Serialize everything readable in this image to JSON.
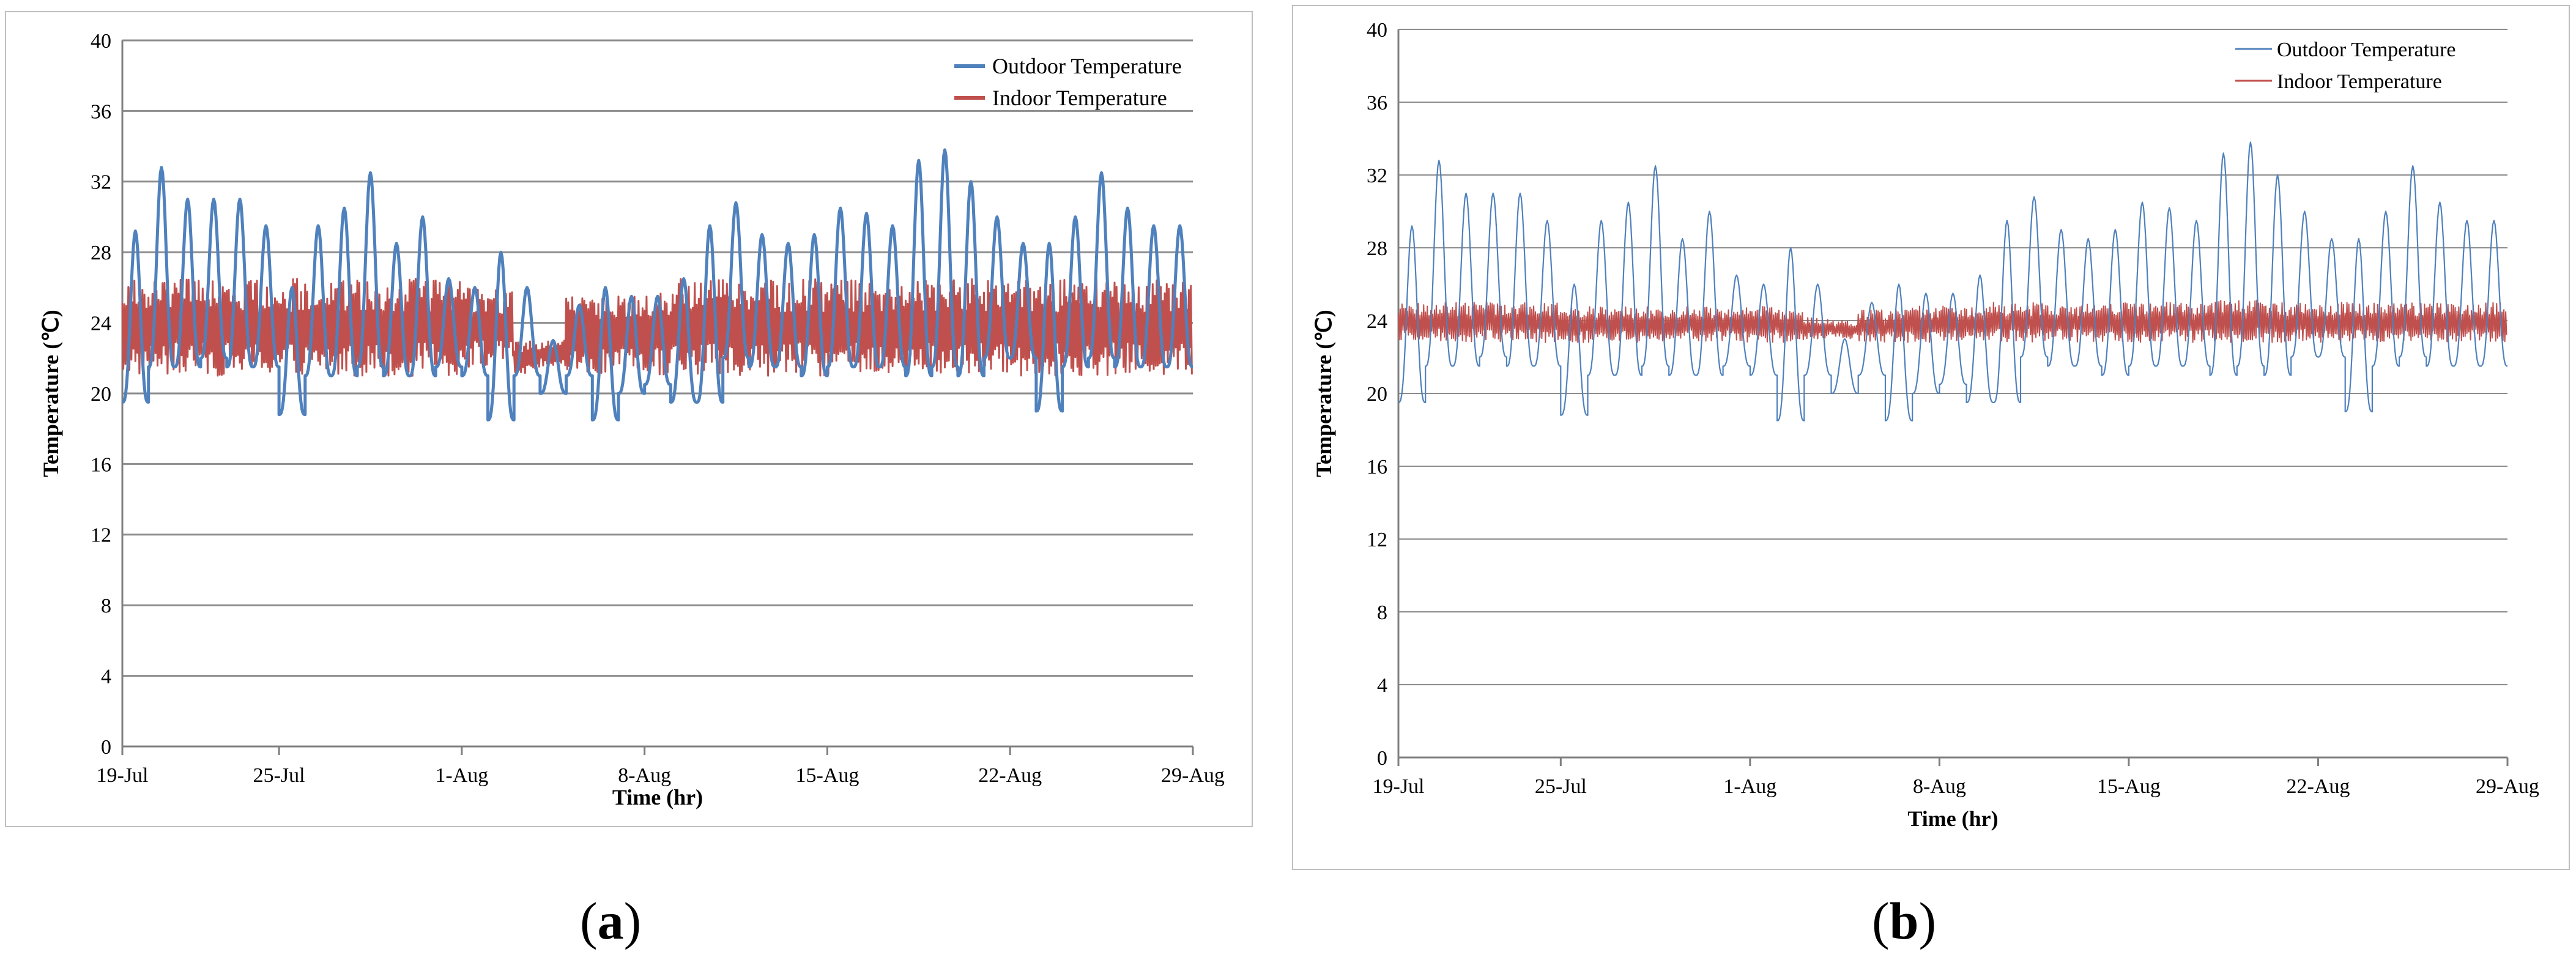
{
  "chart_data": [
    {
      "type": "line",
      "panel_label": "a",
      "xlabel": "Time (hr)",
      "ylabel": "Temperature (℃)",
      "ylim": [
        0,
        40
      ],
      "yticks": [
        "0",
        "4",
        "8",
        "12",
        "16",
        "20",
        "24",
        "28",
        "32",
        "36",
        "40"
      ],
      "xlim_days": [
        0,
        41
      ],
      "xticks": [
        {
          "label": "19-Jul",
          "day": 0
        },
        {
          "label": "25-Jul",
          "day": 6
        },
        {
          "label": "1-Aug",
          "day": 13
        },
        {
          "label": "8-Aug",
          "day": 20
        },
        {
          "label": "15-Aug",
          "day": 27
        },
        {
          "label": "22-Aug",
          "day": 34
        },
        {
          "label": "29-Aug",
          "day": 41
        }
      ],
      "grid": "horizontal",
      "legend_position": "top-right",
      "series": [
        {
          "name": "Outdoor Temperature",
          "color": "#4f81bd",
          "line_width": "thick"
        },
        {
          "name": "Indoor Temperature",
          "color": "#c0504d",
          "line_width": "thick"
        }
      ],
      "outdoor_daily": [
        [
          19.5,
          29.2
        ],
        [
          21.5,
          32.8
        ],
        [
          21.5,
          31.0
        ],
        [
          22.0,
          31.0
        ],
        [
          21.5,
          31.0
        ],
        [
          21.5,
          29.5
        ],
        [
          18.8,
          26.0
        ],
        [
          21.0,
          29.5
        ],
        [
          21.0,
          30.5
        ],
        [
          21.5,
          32.5
        ],
        [
          21.0,
          28.5
        ],
        [
          21.0,
          30.0
        ],
        [
          21.5,
          26.5
        ],
        [
          21.0,
          26.0
        ],
        [
          18.5,
          28.0
        ],
        [
          21.0,
          26.0
        ],
        [
          20.0,
          23.0
        ],
        [
          21.0,
          25.0
        ],
        [
          18.5,
          26.0
        ],
        [
          20.0,
          25.5
        ],
        [
          20.5,
          25.5
        ],
        [
          19.5,
          26.5
        ],
        [
          19.5,
          29.5
        ],
        [
          22.0,
          30.8
        ],
        [
          21.5,
          29.0
        ],
        [
          21.5,
          28.5
        ],
        [
          21.0,
          29.0
        ],
        [
          21.5,
          30.5
        ],
        [
          21.5,
          30.2
        ],
        [
          21.5,
          29.5
        ],
        [
          21.0,
          33.2
        ],
        [
          21.5,
          33.8
        ],
        [
          21.0,
          32.0
        ],
        [
          22.0,
          30.0
        ],
        [
          22.0,
          28.5
        ],
        [
          19.0,
          28.5
        ],
        [
          21.5,
          30.0
        ],
        [
          22.0,
          32.5
        ],
        [
          21.5,
          30.5
        ],
        [
          21.5,
          29.5
        ],
        [
          21.5,
          29.5
        ]
      ],
      "indoor_band": [
        [
          21.0,
          26.5
        ],
        [
          21.0,
          26.5
        ],
        [
          21.0,
          26.5
        ],
        [
          21.0,
          26.5
        ],
        [
          21.0,
          26.5
        ],
        [
          21.0,
          26.5
        ],
        [
          21.0,
          26.5
        ],
        [
          21.0,
          26.5
        ],
        [
          21.0,
          26.5
        ],
        [
          21.0,
          26.5
        ],
        [
          21.0,
          26.5
        ],
        [
          21.0,
          26.5
        ],
        [
          21.0,
          26.5
        ],
        [
          21.5,
          26.0
        ],
        [
          21.5,
          26.0
        ],
        [
          21.0,
          23.0
        ],
        [
          21.5,
          23.0
        ],
        [
          21.0,
          25.5
        ],
        [
          21.0,
          25.5
        ],
        [
          21.0,
          25.5
        ],
        [
          21.0,
          26.0
        ],
        [
          21.0,
          26.5
        ],
        [
          21.0,
          26.5
        ],
        [
          21.0,
          26.5
        ],
        [
          21.0,
          26.5
        ],
        [
          21.0,
          26.5
        ],
        [
          21.0,
          26.5
        ],
        [
          21.0,
          26.5
        ],
        [
          21.0,
          26.5
        ],
        [
          21.0,
          26.5
        ],
        [
          21.0,
          26.5
        ],
        [
          21.0,
          26.5
        ],
        [
          21.0,
          26.5
        ],
        [
          21.0,
          26.5
        ],
        [
          21.0,
          26.5
        ],
        [
          21.0,
          26.5
        ],
        [
          21.0,
          26.5
        ],
        [
          21.0,
          26.5
        ],
        [
          21.0,
          26.5
        ],
        [
          21.0,
          26.5
        ],
        [
          21.0,
          26.5
        ]
      ]
    },
    {
      "type": "line",
      "panel_label": "b",
      "xlabel": "Time (hr)",
      "ylabel": "Temperature (℃)",
      "ylim": [
        0,
        40
      ],
      "yticks": [
        "0",
        "4",
        "8",
        "12",
        "16",
        "20",
        "24",
        "28",
        "32",
        "36",
        "40"
      ],
      "xlim_days": [
        0,
        41
      ],
      "xticks": [
        {
          "label": "19-Jul",
          "day": 0
        },
        {
          "label": "25-Jul",
          "day": 6
        },
        {
          "label": "1-Aug",
          "day": 13
        },
        {
          "label": "8-Aug",
          "day": 20
        },
        {
          "label": "15-Aug",
          "day": 27
        },
        {
          "label": "22-Aug",
          "day": 34
        },
        {
          "label": "29-Aug",
          "day": 41
        }
      ],
      "grid": "horizontal",
      "legend_position": "top-right",
      "series": [
        {
          "name": "Outdoor Temperature",
          "color": "#4f81bd",
          "line_width": "thin"
        },
        {
          "name": "Indoor Temperature",
          "color": "#c0504d",
          "line_width": "thin"
        }
      ],
      "outdoor_daily": [
        [
          19.5,
          29.2
        ],
        [
          21.5,
          32.8
        ],
        [
          21.5,
          31.0
        ],
        [
          22.0,
          31.0
        ],
        [
          21.5,
          31.0
        ],
        [
          21.5,
          29.5
        ],
        [
          18.8,
          26.0
        ],
        [
          21.0,
          29.5
        ],
        [
          21.0,
          30.5
        ],
        [
          21.5,
          32.5
        ],
        [
          21.0,
          28.5
        ],
        [
          21.0,
          30.0
        ],
        [
          21.5,
          26.5
        ],
        [
          21.0,
          26.0
        ],
        [
          18.5,
          28.0
        ],
        [
          21.0,
          26.0
        ],
        [
          20.0,
          23.0
        ],
        [
          21.0,
          25.0
        ],
        [
          18.5,
          26.0
        ],
        [
          20.0,
          25.5
        ],
        [
          20.5,
          25.5
        ],
        [
          19.5,
          26.5
        ],
        [
          19.5,
          29.5
        ],
        [
          22.0,
          30.8
        ],
        [
          21.5,
          29.0
        ],
        [
          21.5,
          28.5
        ],
        [
          21.0,
          29.0
        ],
        [
          21.5,
          30.5
        ],
        [
          21.5,
          30.2
        ],
        [
          21.5,
          29.5
        ],
        [
          21.0,
          33.2
        ],
        [
          21.5,
          33.8
        ],
        [
          21.0,
          32.0
        ],
        [
          22.0,
          30.0
        ],
        [
          22.0,
          28.5
        ],
        [
          19.0,
          28.5
        ],
        [
          21.5,
          30.0
        ],
        [
          22.0,
          32.5
        ],
        [
          21.5,
          30.5
        ],
        [
          21.5,
          29.5
        ],
        [
          21.5,
          29.5
        ]
      ],
      "indoor_band": [
        [
          22.8,
          25.0
        ],
        [
          22.8,
          25.0
        ],
        [
          22.8,
          25.0
        ],
        [
          22.8,
          25.0
        ],
        [
          22.8,
          25.0
        ],
        [
          22.8,
          25.0
        ],
        [
          22.8,
          24.8
        ],
        [
          22.8,
          24.8
        ],
        [
          22.8,
          24.8
        ],
        [
          22.8,
          24.8
        ],
        [
          22.8,
          24.8
        ],
        [
          22.8,
          24.8
        ],
        [
          22.8,
          24.8
        ],
        [
          22.8,
          24.8
        ],
        [
          22.8,
          24.6
        ],
        [
          23.0,
          24.2
        ],
        [
          23.0,
          24.0
        ],
        [
          22.8,
          24.6
        ],
        [
          22.8,
          24.6
        ],
        [
          22.8,
          24.8
        ],
        [
          22.8,
          24.8
        ],
        [
          22.8,
          24.8
        ],
        [
          22.8,
          25.0
        ],
        [
          22.8,
          25.0
        ],
        [
          22.8,
          25.0
        ],
        [
          22.8,
          25.0
        ],
        [
          22.8,
          25.0
        ],
        [
          22.8,
          25.0
        ],
        [
          22.8,
          25.0
        ],
        [
          22.8,
          25.0
        ],
        [
          22.8,
          25.2
        ],
        [
          22.8,
          25.2
        ],
        [
          22.8,
          25.0
        ],
        [
          22.8,
          25.0
        ],
        [
          22.8,
          25.0
        ],
        [
          22.8,
          25.0
        ],
        [
          22.8,
          25.0
        ],
        [
          22.8,
          25.0
        ],
        [
          22.8,
          25.0
        ],
        [
          22.8,
          25.0
        ],
        [
          22.8,
          25.0
        ]
      ]
    }
  ]
}
